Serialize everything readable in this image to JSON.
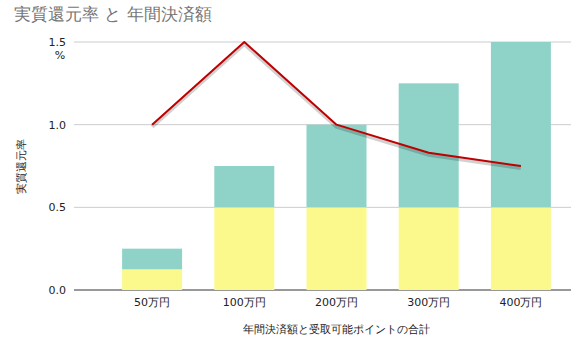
{
  "chart_data": {
    "type": "bar",
    "title": "実質還元率 と 年間決済額",
    "y_label": "実質還元率",
    "x_label": "年間決済額と受取可能ポイントの合計",
    "annotation": "%",
    "categories": [
      "50万円",
      "100万円",
      "200万円",
      "300万円",
      "400万円"
    ],
    "stacked": true,
    "series": [
      {
        "type": "bar",
        "color": "#fbf98c",
        "values": [
          0.125,
          0.5,
          0.5,
          0.5,
          0.5
        ]
      },
      {
        "type": "bar",
        "color": "#8fd3c8",
        "values": [
          0.125,
          0.25,
          0.5,
          0.75,
          1.0
        ]
      },
      {
        "type": "line",
        "color": "#c00000",
        "values": [
          1.0,
          1.5,
          1.0,
          0.83,
          0.75
        ]
      }
    ],
    "ylim": [
      0,
      1.5
    ],
    "yticks": [
      {
        "value": 0,
        "label": "0.0"
      },
      0.5,
      {
        "value": 1,
        "label": "1.0"
      },
      1.5
    ],
    "grid": true
  }
}
